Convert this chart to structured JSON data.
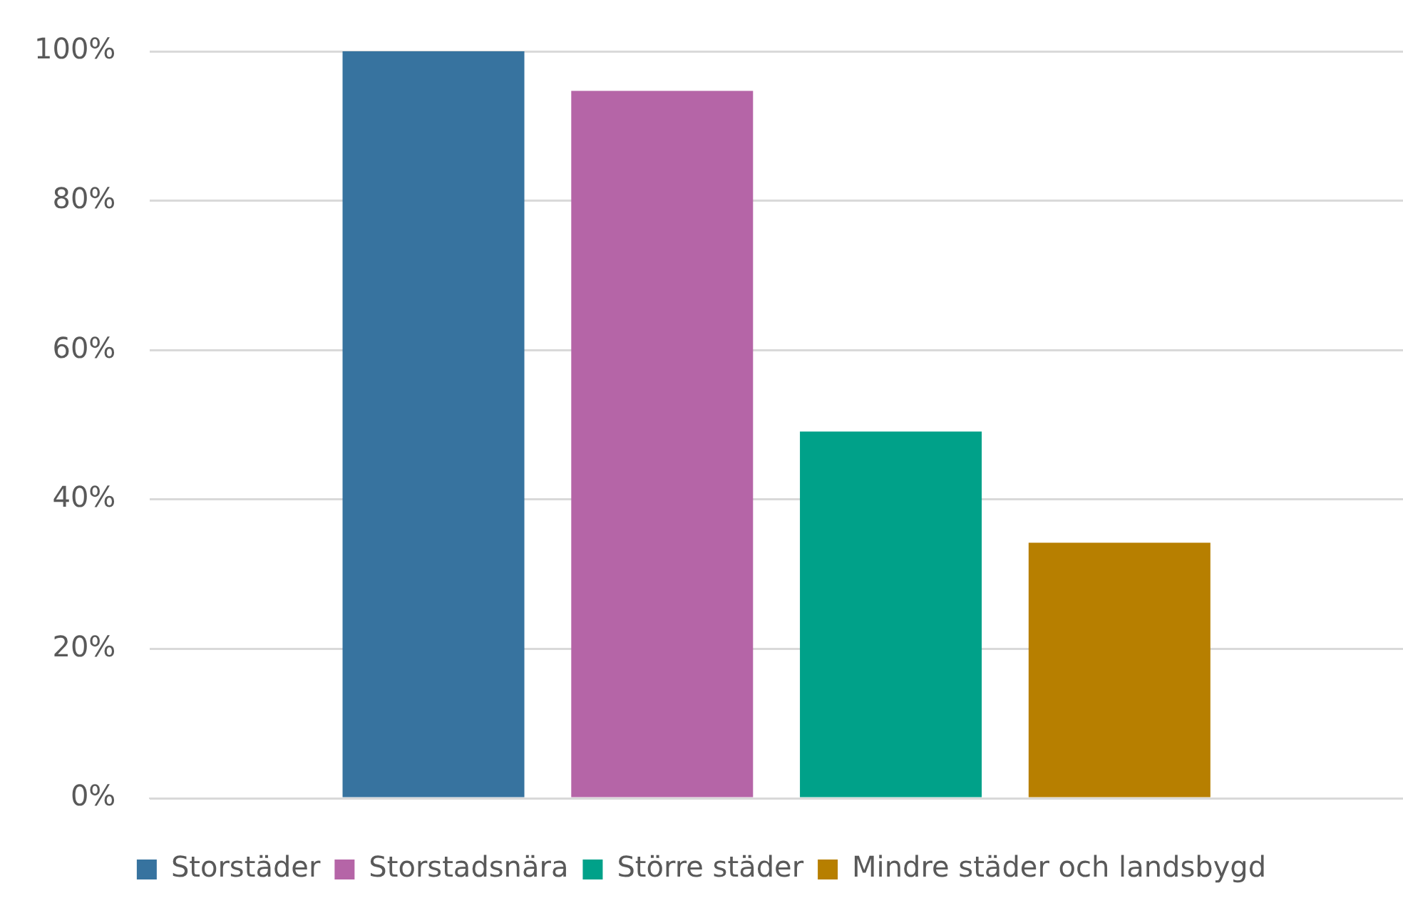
{
  "chart_data": {
    "type": "bar",
    "categories": [
      null
    ],
    "series": [
      {
        "name": "Storstäder",
        "color": "#37739f",
        "values": [
          100
        ]
      },
      {
        "name": "Storstadsnära",
        "color": "#b565a7",
        "values": [
          94.7
        ]
      },
      {
        "name": "Större städer",
        "color": "#00a189",
        "values": [
          49.1
        ]
      },
      {
        "name": "Mindre städer och landsbygd",
        "color": "#b77f00",
        "values": [
          34.2
        ]
      }
    ],
    "ylim": [
      0,
      100
    ],
    "yticks": [
      {
        "value": 0,
        "label": "0%"
      },
      {
        "value": 20,
        "label": "20%"
      },
      {
        "value": 40,
        "label": "40%"
      },
      {
        "value": 60,
        "label": "60%"
      },
      {
        "value": 80,
        "label": "80%"
      },
      {
        "value": 100,
        "label": "100%"
      }
    ],
    "grid": "y",
    "legend": "bottom"
  }
}
